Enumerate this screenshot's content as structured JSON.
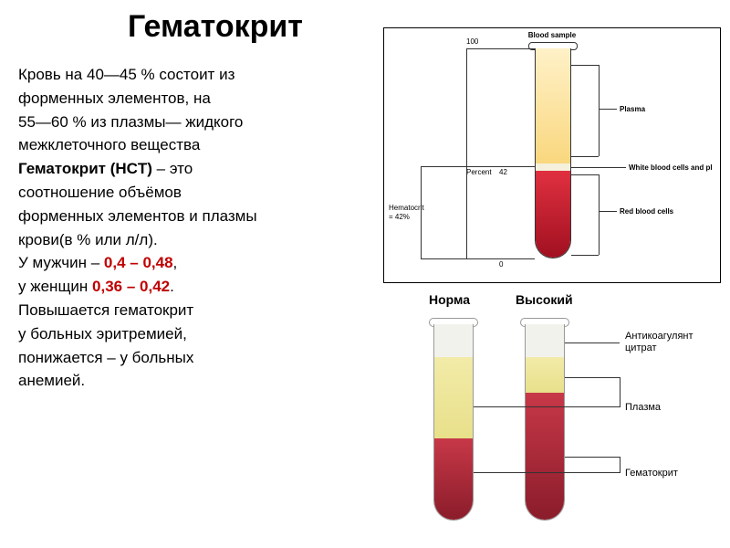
{
  "title": "Гематокрит",
  "text": {
    "p1a": "Кровь на 40—45 % состоит из",
    "p1b": "форменных элементов, на",
    "p1c": "55—60 % из плазмы— жидкого",
    "p1d": "межклеточного вещества",
    "p2a_bold": "Гематокрит (HCT)",
    "p2a_rest": " – это",
    "p2b": "соотношение объёмов",
    "p2c": "форменных элементов и плазмы",
    "p2d": "крови(в % или л/л).",
    "p3a": "У мужчин – ",
    "p3a_val": "0,4 – 0,48",
    "p3a_tail": ",",
    "p3b": "у женщин ",
    "p3b_val": "0,36 – 0,42",
    "p3b_tail": ".",
    "p4a": "Повышается гематокрит",
    "p4b": "у больных эритремией,",
    "p4c": "понижается – у больных",
    "p4d": "анемией."
  },
  "diagram_top": {
    "sample_label": "Blood sample",
    "scale_top": "100",
    "scale_mid_lbl": "Percent",
    "scale_mid_val": "42",
    "scale_bot": "0",
    "plasma_label": "Plasma",
    "wbc_label": "White blood cells and pl",
    "rbc_label": "Red blood cells",
    "hct_label1": "Hematocrit",
    "hct_label2": "= 42%",
    "colors": {
      "plasma": "#f9d77e",
      "buffy": "#f5f0dc",
      "rbc_top": "#e03040",
      "rbc_bot": "#a01020"
    },
    "heights": {
      "plasma": 126,
      "buffy": 8,
      "rbc": 96
    }
  },
  "diagram_bottom": {
    "normal_label": "Норма",
    "high_label": "Высокий",
    "callout_anticoag1": "Антикоагулянт",
    "callout_anticoag2": "цитрат",
    "callout_plasma": "Плазма",
    "callout_hct": "Гематокрит",
    "colors": {
      "anticoag": "#f2f2ed",
      "plasma": "#e8e08a",
      "hct_top": "#c73848",
      "hct_bot": "#8a1c2a"
    },
    "normal": {
      "anticoag": 36,
      "plasma": 89,
      "hct": 90
    },
    "high": {
      "anticoag": 36,
      "plasma": 39,
      "hct": 140
    }
  }
}
